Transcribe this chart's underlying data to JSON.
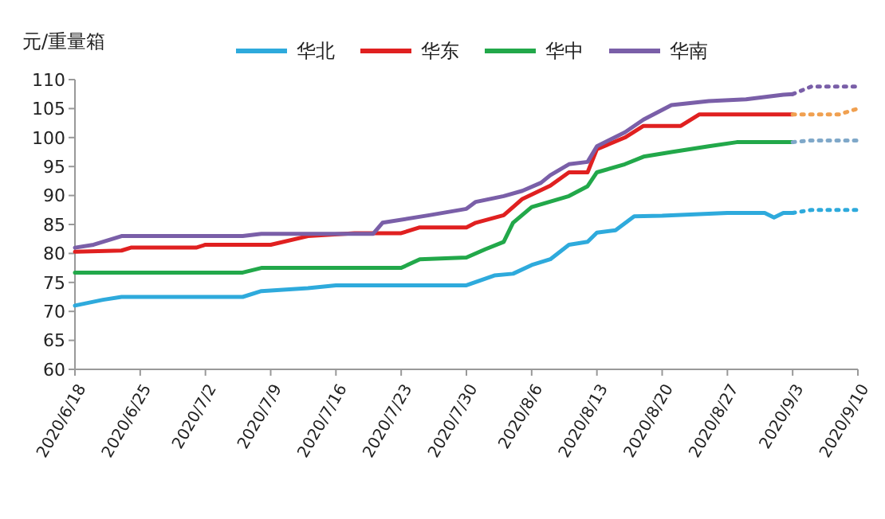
{
  "chart_data": {
    "type": "line",
    "ylabel": "元/重量箱",
    "xlim": [
      "2020-06-18",
      "2020-09-10"
    ],
    "xticks": [
      {
        "value": "2020-06-18",
        "label": "2020/6/18"
      },
      {
        "value": "2020-06-25",
        "label": "2020/6/25"
      },
      {
        "value": "2020-07-02",
        "label": "2020/7/2"
      },
      {
        "value": "2020-07-09",
        "label": "2020/7/9"
      },
      {
        "value": "2020-07-16",
        "label": "2020/7/16"
      },
      {
        "value": "2020-07-23",
        "label": "2020/7/23"
      },
      {
        "value": "2020-07-30",
        "label": "2020/7/30"
      },
      {
        "value": "2020-08-06",
        "label": "2020/8/6"
      },
      {
        "value": "2020-08-13",
        "label": "2020/8/13"
      },
      {
        "value": "2020-08-20",
        "label": "2020/8/20"
      },
      {
        "value": "2020-08-27",
        "label": "2020/8/27"
      },
      {
        "value": "2020-09-03",
        "label": "2020/9/3"
      },
      {
        "value": "2020-09-10",
        "label": "2020/9/10"
      }
    ],
    "ylim": [
      60,
      110
    ],
    "yticks": [
      60,
      65,
      70,
      75,
      80,
      85,
      90,
      95,
      100,
      105,
      110
    ],
    "grid": false,
    "legend": "top",
    "marker": "none",
    "series": [
      {
        "name": "华北",
        "color": "#2eaadc",
        "line_style": "solid",
        "x": [
          "2020-06-18",
          "2020-06-21",
          "2020-06-23",
          "2020-07-06",
          "2020-07-08",
          "2020-07-13",
          "2020-07-16",
          "2020-07-30",
          "2020-08-02",
          "2020-08-04",
          "2020-08-06",
          "2020-08-08",
          "2020-08-10",
          "2020-08-12",
          "2020-08-13",
          "2020-08-15",
          "2020-08-17",
          "2020-08-20",
          "2020-08-27",
          "2020-08-31",
          "2020-09-01",
          "2020-09-02",
          "2020-09-03"
        ],
        "values": [
          71,
          72,
          72.5,
          72.5,
          73.5,
          74,
          74.5,
          74.5,
          76.2,
          76.5,
          78,
          79,
          81.5,
          82,
          83.6,
          84,
          86.4,
          86.5,
          87,
          87,
          86.2,
          87,
          87
        ]
      },
      {
        "name": "华东",
        "color": "#e02020",
        "line_style": "solid",
        "x": [
          "2020-06-18",
          "2020-06-23",
          "2020-06-24",
          "2020-07-01",
          "2020-07-02",
          "2020-07-09",
          "2020-07-13",
          "2020-07-18",
          "2020-07-23",
          "2020-07-25",
          "2020-07-30",
          "2020-07-31",
          "2020-08-03",
          "2020-08-05",
          "2020-08-08",
          "2020-08-10",
          "2020-08-12",
          "2020-08-13",
          "2020-08-16",
          "2020-08-18",
          "2020-08-22",
          "2020-08-24",
          "2020-09-03"
        ],
        "values": [
          80.3,
          80.5,
          81,
          81,
          81.5,
          81.5,
          83,
          83.5,
          83.5,
          84.5,
          84.5,
          85.3,
          86.6,
          89.4,
          91.7,
          94,
          94,
          98,
          100,
          102,
          102,
          104,
          104
        ]
      },
      {
        "name": "华中",
        "color": "#22a84a",
        "line_style": "solid",
        "x": [
          "2020-06-18",
          "2020-07-06",
          "2020-07-08",
          "2020-07-23",
          "2020-07-25",
          "2020-07-30",
          "2020-08-01",
          "2020-08-03",
          "2020-08-04",
          "2020-08-06",
          "2020-08-10",
          "2020-08-12",
          "2020-08-13",
          "2020-08-16",
          "2020-08-18",
          "2020-08-21",
          "2020-08-25",
          "2020-08-28",
          "2020-09-03"
        ],
        "values": [
          76.7,
          76.7,
          77.5,
          77.5,
          79,
          79.3,
          80.7,
          82,
          85.3,
          88,
          89.9,
          91.6,
          94,
          95.4,
          96.7,
          97.5,
          98.5,
          99.2,
          99.2
        ]
      },
      {
        "name": "华南",
        "color": "#7a5fa8",
        "line_style": "solid",
        "x": [
          "2020-06-18",
          "2020-06-20",
          "2020-06-23",
          "2020-07-06",
          "2020-07-08",
          "2020-07-20",
          "2020-07-21",
          "2020-07-26",
          "2020-07-30",
          "2020-07-31",
          "2020-08-03",
          "2020-08-05",
          "2020-08-07",
          "2020-08-08",
          "2020-08-10",
          "2020-08-12",
          "2020-08-13",
          "2020-08-16",
          "2020-08-18",
          "2020-08-21",
          "2020-08-25",
          "2020-08-29",
          "2020-09-02",
          "2020-09-03"
        ],
        "values": [
          81,
          81.5,
          83,
          83,
          83.4,
          83.4,
          85.3,
          86.6,
          87.7,
          88.9,
          89.9,
          90.8,
          92.2,
          93.5,
          95.4,
          95.8,
          98.5,
          100.9,
          103.1,
          105.6,
          106.3,
          106.6,
          107.4,
          107.5
        ]
      },
      {
        "color": "#2eaadc",
        "line_style": "dotted",
        "x": [
          "2020-09-03",
          "2020-09-05",
          "2020-09-10"
        ],
        "values": [
          87,
          87.5,
          87.5
        ]
      },
      {
        "color": "#f0a050",
        "line_style": "dotted",
        "x": [
          "2020-09-03",
          "2020-09-08",
          "2020-09-10"
        ],
        "values": [
          104,
          104,
          105
        ]
      },
      {
        "color": "#7fa8c9",
        "line_style": "dotted",
        "x": [
          "2020-09-03",
          "2020-09-05",
          "2020-09-10"
        ],
        "values": [
          99.2,
          99.5,
          99.5
        ]
      },
      {
        "color": "#7a5fa8",
        "line_style": "dotted",
        "x": [
          "2020-09-03",
          "2020-09-05",
          "2020-09-10"
        ],
        "values": [
          107.5,
          108.8,
          108.8
        ]
      }
    ]
  }
}
